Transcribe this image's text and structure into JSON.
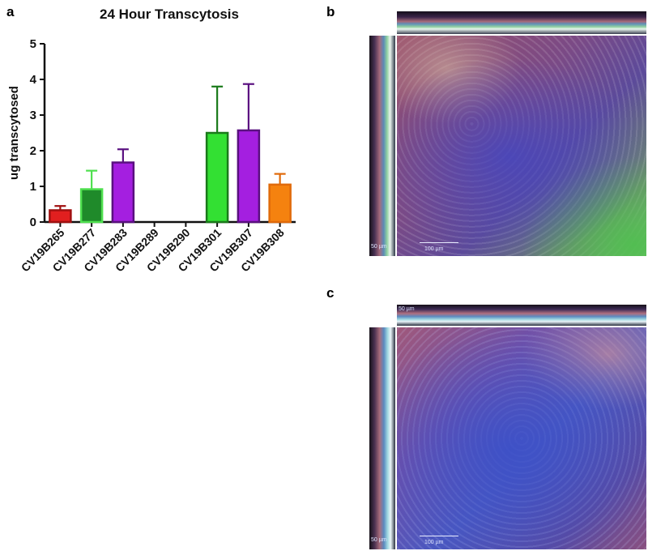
{
  "panels": {
    "a": "a",
    "b": "b",
    "c": "c"
  },
  "chart_data": {
    "type": "bar",
    "title": "24 Hour Transcytosis",
    "ylabel": "ug transcytosed",
    "xlabel": "",
    "ylim": [
      0,
      5
    ],
    "yticks": [
      "0",
      "1",
      "2",
      "3",
      "4",
      "5"
    ],
    "categories": [
      "CV19B265",
      "CV19B277",
      "CV19B283",
      "CV19B289",
      "CV19B290",
      "CV19B301",
      "CV19B307",
      "CV19B308"
    ],
    "values": [
      0.33,
      0.92,
      1.67,
      0,
      0,
      2.5,
      2.57,
      1.05
    ],
    "errors": [
      0.12,
      0.52,
      0.37,
      0,
      0,
      1.3,
      1.3,
      0.3
    ],
    "fill_colors": [
      "#e11f1f",
      "#1f8a2a",
      "#a41fe0",
      "#ffffff",
      "#ffffff",
      "#33e033",
      "#a41fe0",
      "#f5820f"
    ],
    "edge_colors": [
      "#a01010",
      "#4fe04f",
      "#5a1080",
      "#ffffff",
      "#ffffff",
      "#1a7a1a",
      "#5a1080",
      "#e06a0a"
    ]
  },
  "micrographs": {
    "b": {
      "scale_xy": "100 µm",
      "scale_yz": "50 µm"
    },
    "c": {
      "scale_xy": "100 µm",
      "scale_yz": "50 µm",
      "scale_xz": "50 µm"
    }
  }
}
